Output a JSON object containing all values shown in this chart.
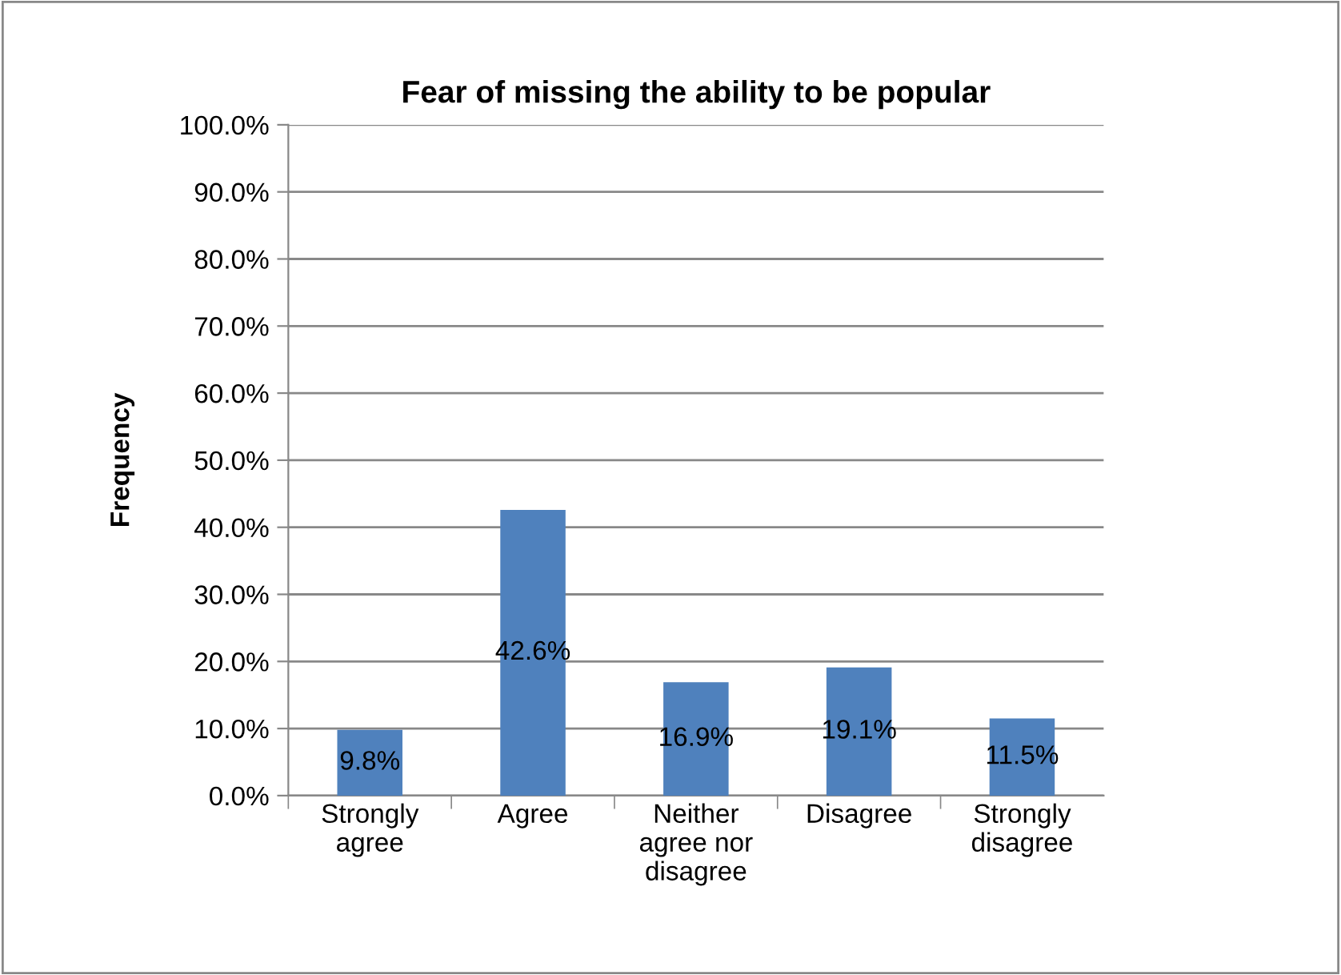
{
  "chart_data": {
    "type": "bar",
    "title": "Fear of missing the ability to be popular",
    "ylabel": "Frequency",
    "categories": [
      "Strongly agree",
      "Agree",
      "Neither agree nor disagree",
      "Disagree",
      "Strongly disagree"
    ],
    "values": [
      9.8,
      42.6,
      16.9,
      19.1,
      11.5
    ],
    "value_labels": [
      "9.8%",
      "42.6%",
      "16.9%",
      "19.1%",
      "11.5%"
    ],
    "color": "#4f81bd",
    "ylim": [
      0,
      100
    ],
    "yticks": [
      {
        "value": 0,
        "label": "0.0%"
      },
      {
        "value": 10,
        "label": "10.0%"
      },
      {
        "value": 20,
        "label": "20.0%"
      },
      {
        "value": 30,
        "label": "30.0%"
      },
      {
        "value": 40,
        "label": "40.0%"
      },
      {
        "value": 50,
        "label": "50.0%"
      },
      {
        "value": 60,
        "label": "60.0%"
      },
      {
        "value": 70,
        "label": "70.0%"
      },
      {
        "value": 80,
        "label": "80.0%"
      },
      {
        "value": 90,
        "label": "90.0%"
      },
      {
        "value": 100,
        "label": "100.0%"
      }
    ],
    "grid": "y",
    "legend": false
  }
}
